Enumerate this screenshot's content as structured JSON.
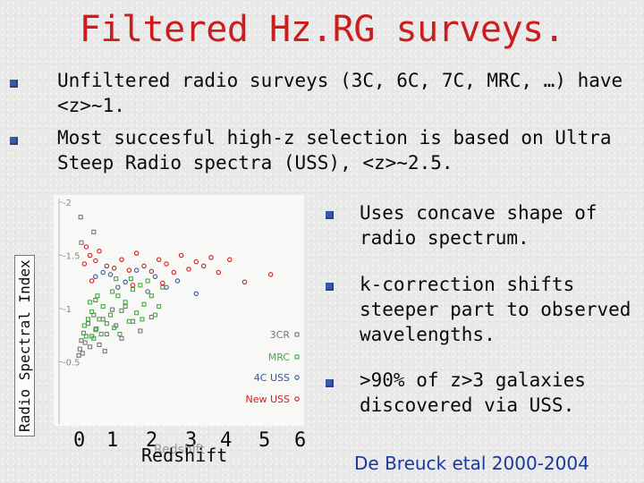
{
  "title": "Filtered Hz.RG surveys.",
  "bullets_top": [
    "Unfiltered radio surveys (3C, 6C, 7C, MRC, …) have <z>~1.",
    "Most succesful high-z selection is based on Ultra Steep Radio spectra (USS), <z>~2.5."
  ],
  "bullets_right": [
    "Uses concave shape of radio spectrum.",
    "k-correction shifts steeper part to observed wavelengths.",
    ">90% of z>3 galaxies discovered via USS."
  ],
  "citation": "De Breuck etal 2000-2004",
  "colors": {
    "title": "#cc1c1c",
    "bullet": "#3a58a8",
    "citation": "#1a3a9a"
  },
  "chart_data": {
    "type": "scatter",
    "title": "",
    "xlabel": "Redshift",
    "ylabel": "Radio Spectral Index",
    "x_ticks": [
      "0",
      "1",
      "2",
      "3",
      "4",
      "5",
      "6"
    ],
    "y_ticks": [
      "-2",
      "-1.5",
      "-1",
      "-0.5"
    ],
    "faint_xlabel": "Redshift",
    "xlim": [
      0,
      6
    ],
    "ylim": [
      -2,
      0
    ],
    "legend": {
      "position": "bottom-right",
      "entries": [
        "3CR",
        "MRC",
        "4C USS",
        "New USS"
      ]
    },
    "series": [
      {
        "name": "3CR",
        "color": "#777777",
        "marker": "square-open",
        "points": [
          [
            0.05,
            -0.56
          ],
          [
            0.08,
            -0.62
          ],
          [
            0.12,
            -0.7
          ],
          [
            0.18,
            -0.77
          ],
          [
            0.22,
            -0.68
          ],
          [
            0.3,
            -0.86
          ],
          [
            0.4,
            -0.74
          ],
          [
            0.45,
            -0.94
          ],
          [
            0.52,
            -0.81
          ],
          [
            0.6,
            -0.66
          ],
          [
            0.7,
            -0.9
          ],
          [
            0.8,
            -0.76
          ],
          [
            0.95,
            -0.99
          ],
          [
            1.05,
            -0.84
          ],
          [
            1.2,
            -0.72
          ],
          [
            1.3,
            -1.02
          ],
          [
            1.5,
            -0.88
          ],
          [
            1.7,
            -0.79
          ],
          [
            2.0,
            -0.92
          ],
          [
            0.15,
            -0.58
          ],
          [
            0.35,
            -0.64
          ],
          [
            0.5,
            -1.08
          ],
          [
            0.75,
            -0.6
          ],
          [
            0.1,
            -1.86
          ],
          [
            0.12,
            -1.62
          ],
          [
            0.45,
            -1.72
          ]
        ]
      },
      {
        "name": "MRC",
        "color": "#44aa44",
        "marker": "square-open",
        "points": [
          [
            0.2,
            -0.84
          ],
          [
            0.3,
            -0.9
          ],
          [
            0.4,
            -0.97
          ],
          [
            0.5,
            -0.8
          ],
          [
            0.6,
            -0.9
          ],
          [
            0.7,
            -1.02
          ],
          [
            0.8,
            -0.86
          ],
          [
            0.9,
            -0.94
          ],
          [
            1.0,
            -0.82
          ],
          [
            1.1,
            -1.12
          ],
          [
            1.2,
            -0.98
          ],
          [
            1.3,
            -1.06
          ],
          [
            1.4,
            -0.88
          ],
          [
            1.5,
            -1.18
          ],
          [
            1.6,
            -0.96
          ],
          [
            1.7,
            -1.22
          ],
          [
            1.8,
            -1.04
          ],
          [
            1.9,
            -1.26
          ],
          [
            2.0,
            -1.12
          ],
          [
            2.1,
            -0.94
          ],
          [
            2.2,
            -1.02
          ],
          [
            0.35,
            -1.06
          ],
          [
            0.55,
            -1.12
          ],
          [
            0.65,
            -0.76
          ],
          [
            0.95,
            -1.16
          ],
          [
            1.15,
            -0.76
          ],
          [
            1.45,
            -1.28
          ],
          [
            1.75,
            -0.9
          ],
          [
            2.3,
            -1.2
          ],
          [
            0.25,
            -0.74
          ],
          [
            0.45,
            -0.72
          ],
          [
            1.05,
            -1.28
          ]
        ]
      },
      {
        "name": "4C USS",
        "color": "#3a5a9a",
        "marker": "circle-open",
        "points": [
          [
            0.5,
            -1.3
          ],
          [
            0.7,
            -1.34
          ],
          [
            0.9,
            -1.32
          ],
          [
            1.1,
            -1.2
          ],
          [
            1.3,
            -1.25
          ],
          [
            1.6,
            -1.36
          ],
          [
            1.9,
            -1.16
          ],
          [
            2.1,
            -1.3
          ],
          [
            2.4,
            -1.2
          ],
          [
            2.7,
            -1.26
          ],
          [
            3.2,
            -1.14
          ]
        ]
      },
      {
        "name": "New USS",
        "color": "#cc2222",
        "marker": "circle-open",
        "points": [
          [
            0.2,
            -1.42
          ],
          [
            0.25,
            -1.58
          ],
          [
            0.35,
            -1.5
          ],
          [
            0.5,
            -1.45
          ],
          [
            0.6,
            -1.54
          ],
          [
            0.8,
            -1.4
          ],
          [
            1.0,
            -1.38
          ],
          [
            1.2,
            -1.46
          ],
          [
            1.4,
            -1.36
          ],
          [
            1.6,
            -1.52
          ],
          [
            1.8,
            -1.4
          ],
          [
            2.0,
            -1.35
          ],
          [
            2.2,
            -1.46
          ],
          [
            2.4,
            -1.42
          ],
          [
            2.6,
            -1.34
          ],
          [
            2.8,
            -1.5
          ],
          [
            3.0,
            -1.37
          ],
          [
            3.2,
            -1.44
          ],
          [
            3.4,
            -1.4
          ],
          [
            3.6,
            -1.48
          ],
          [
            3.8,
            -1.34
          ],
          [
            4.1,
            -1.46
          ],
          [
            4.5,
            -1.25
          ],
          [
            5.2,
            -1.32
          ],
          [
            0.4,
            -1.26
          ],
          [
            1.5,
            -1.22
          ],
          [
            2.3,
            -1.24
          ]
        ]
      }
    ]
  }
}
